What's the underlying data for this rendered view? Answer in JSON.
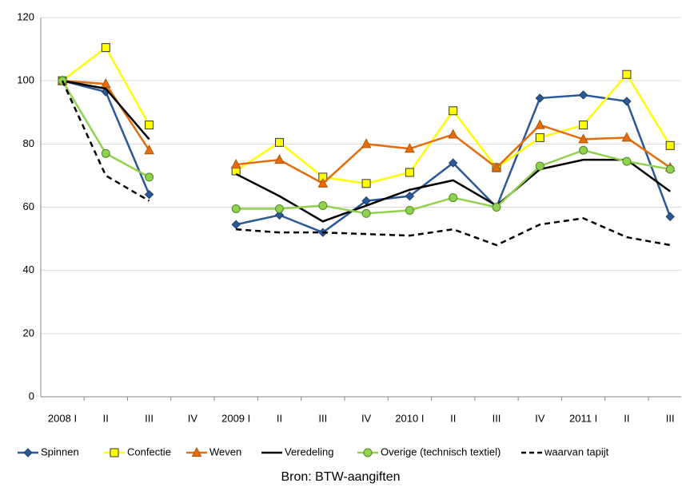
{
  "chart_data": {
    "type": "line",
    "source": "Bron: BTW-aangiften",
    "categories": [
      "2008 I",
      "II",
      "III",
      "IV",
      "2009 I",
      "II",
      "III",
      "IV",
      "2010 I",
      "II",
      "III",
      "IV",
      "2011 I",
      "II",
      "III"
    ],
    "series": [
      {
        "name": "Spinnen",
        "color": "#2b5896",
        "marker": "diamond",
        "dashed": false,
        "values": [
          100,
          96.5,
          64,
          null,
          54.5,
          57.5,
          52,
          62,
          63.5,
          74,
          60,
          94.5,
          95.5,
          93.5,
          57
        ]
      },
      {
        "name": "Confectie",
        "color": "#ffff00",
        "marker": "square",
        "dashed": false,
        "values": [
          100,
          110.5,
          86,
          null,
          71.5,
          80.5,
          69.5,
          67.5,
          71,
          90.5,
          72.5,
          82,
          86,
          102,
          79.5
        ]
      },
      {
        "name": "Weven",
        "color": "#e46c0a",
        "marker": "triangle",
        "dashed": false,
        "values": [
          100,
          99,
          78,
          null,
          73.5,
          75,
          67.5,
          80,
          78.5,
          83,
          72.5,
          86,
          81.5,
          82,
          72.5
        ]
      },
      {
        "name": "Veredeling",
        "color": "#000000",
        "marker": "none",
        "dashed": false,
        "values": [
          100,
          97.5,
          81.5,
          null,
          70.5,
          63.5,
          55.5,
          60.5,
          65.5,
          68.5,
          60.5,
          72,
          75,
          75,
          65
        ]
      },
      {
        "name": "Overige (technisch textiel)",
        "color": "#92d050",
        "marker": "circle",
        "dashed": false,
        "values": [
          100,
          77,
          69.5,
          null,
          59.5,
          59.5,
          60.5,
          58,
          59,
          63,
          60,
          73,
          78,
          74.5,
          72
        ]
      },
      {
        "name": "waarvan tapijt",
        "color": "#000000",
        "marker": "none",
        "dashed": true,
        "values": [
          100,
          70,
          62,
          null,
          53,
          52,
          52,
          51.5,
          51,
          53,
          48,
          54.5,
          56.5,
          50.5,
          48
        ]
      }
    ],
    "ylim": [
      0,
      120
    ],
    "yticks": [
      0,
      20,
      40,
      60,
      80,
      100,
      120
    ],
    "grid": true,
    "legend": "bottom"
  }
}
